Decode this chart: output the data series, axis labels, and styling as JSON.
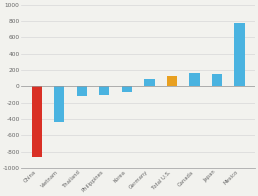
{
  "categories": [
    "China",
    "Vietnam",
    "Thailand",
    "Philippines",
    "Korea",
    "Germany",
    "Total U.S.",
    "Canada",
    "Japan",
    "Mexico"
  ],
  "values": [
    -860,
    -430,
    -120,
    -110,
    -70,
    90,
    130,
    160,
    155,
    780
  ],
  "bar_colors": [
    "#d93025",
    "#4ab3e0",
    "#4ab3e0",
    "#4ab3e0",
    "#4ab3e0",
    "#4ab3e0",
    "#e8a020",
    "#4ab3e0",
    "#4ab3e0",
    "#4ab3e0"
  ],
  "ylim": [
    -1000,
    1000
  ],
  "ytick_values": [
    1000,
    800,
    600,
    400,
    200,
    0,
    -200,
    -400,
    -600,
    -800,
    -1000
  ],
  "ytick_labels": [
    "1000",
    "800",
    "600",
    "400",
    "200",
    "0",
    "-200",
    "-400",
    "-600",
    "-800",
    "-1000"
  ],
  "grid_color": "#d8d8d8",
  "bg_color": "#f2f2ee",
  "bar_width": 0.45,
  "tick_fontsize": 4.2,
  "xlabel_fontsize": 3.8
}
